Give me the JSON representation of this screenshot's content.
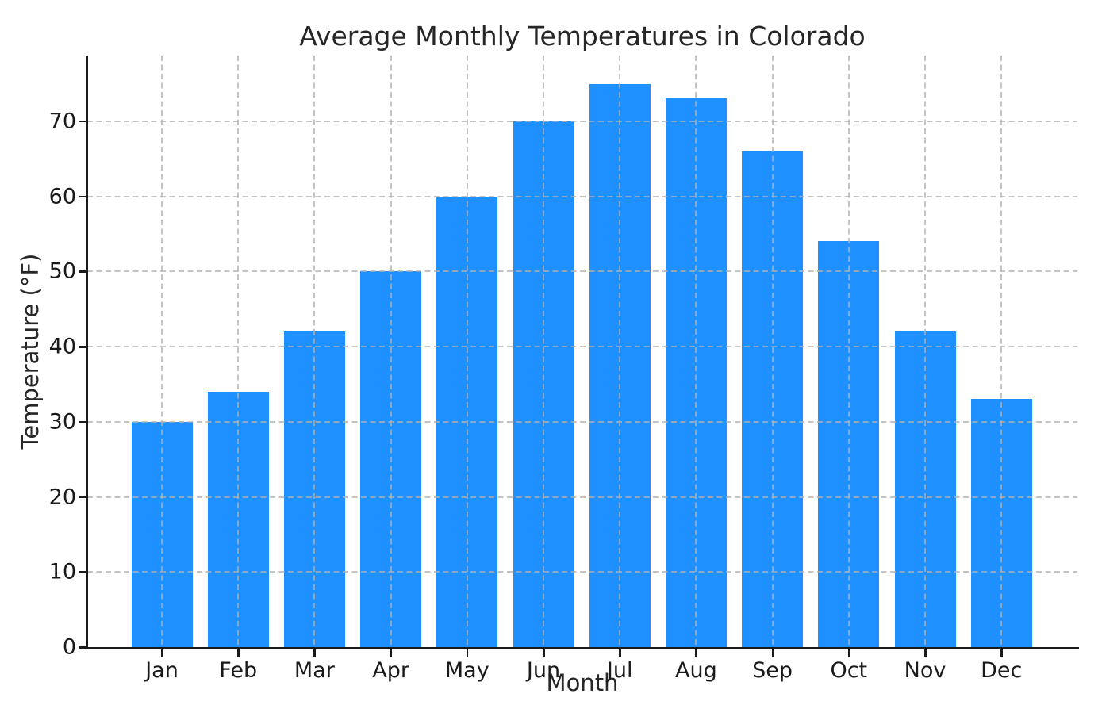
{
  "chart_data": {
    "type": "bar",
    "title": "Average Monthly Temperatures in Colorado",
    "xlabel": "Month",
    "ylabel": "Temperature (°F)",
    "categories": [
      "Jan",
      "Feb",
      "Mar",
      "Apr",
      "May",
      "Jun",
      "Jul",
      "Aug",
      "Sep",
      "Oct",
      "Nov",
      "Dec"
    ],
    "values": [
      30,
      34,
      42,
      50,
      60,
      70,
      75,
      73,
      66,
      54,
      42,
      33
    ],
    "yticks": [
      0,
      10,
      20,
      30,
      40,
      50,
      60,
      70
    ],
    "ylim": [
      0,
      78.75
    ],
    "bar_color": "#1E90FF",
    "grid": true,
    "grid_style": "dashed",
    "legend": "none",
    "background_color": "#FFFFFF",
    "axis_color": "#1A1A1A"
  }
}
